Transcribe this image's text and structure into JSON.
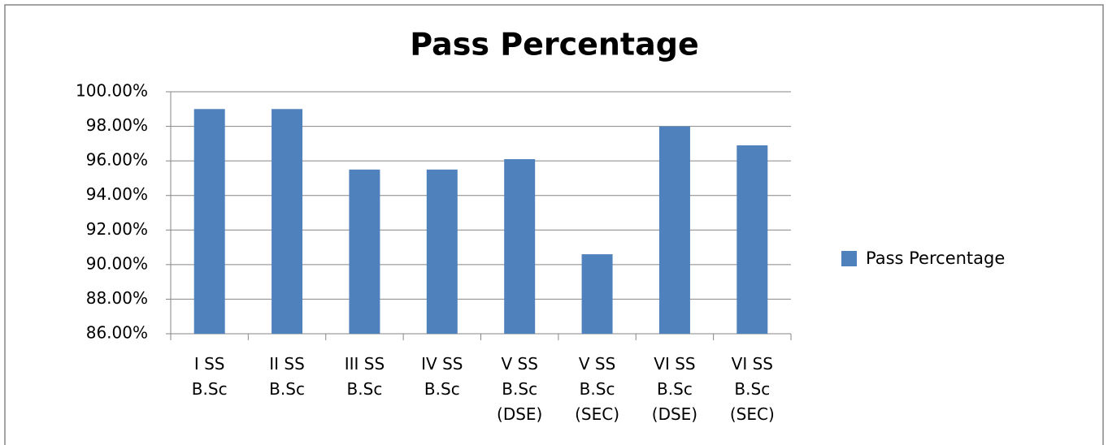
{
  "chart_data": {
    "type": "bar",
    "title": "Pass Percentage",
    "categories": [
      "I SS\nB.Sc",
      "II SS\nB.Sc",
      "III SS\nB.Sc",
      "IV SS\nB.Sc",
      "V SS\nB.Sc\n(DSE)",
      "V SS\nB.Sc\n(SEC)",
      "VI SS\nB.Sc\n(DSE)",
      "VI SS\nB.Sc\n(SEC)"
    ],
    "series": [
      {
        "name": "Pass Percentage",
        "color": "#4f81bd",
        "values": [
          99.0,
          99.0,
          95.5,
          95.5,
          96.1,
          90.6,
          98.0,
          96.9
        ]
      }
    ],
    "ylim": [
      86,
      100
    ],
    "yticks": [
      {
        "value": 86,
        "label": "86.00%"
      },
      {
        "value": 88,
        "label": "88.00%"
      },
      {
        "value": 90,
        "label": "90.00%"
      },
      {
        "value": 92,
        "label": "92.00%"
      },
      {
        "value": 94,
        "label": "94.00%"
      },
      {
        "value": 96,
        "label": "96.00%"
      },
      {
        "value": 98,
        "label": "98.00%"
      },
      {
        "value": 100,
        "label": "100.00%"
      }
    ],
    "grid": true,
    "legend": "right"
  }
}
